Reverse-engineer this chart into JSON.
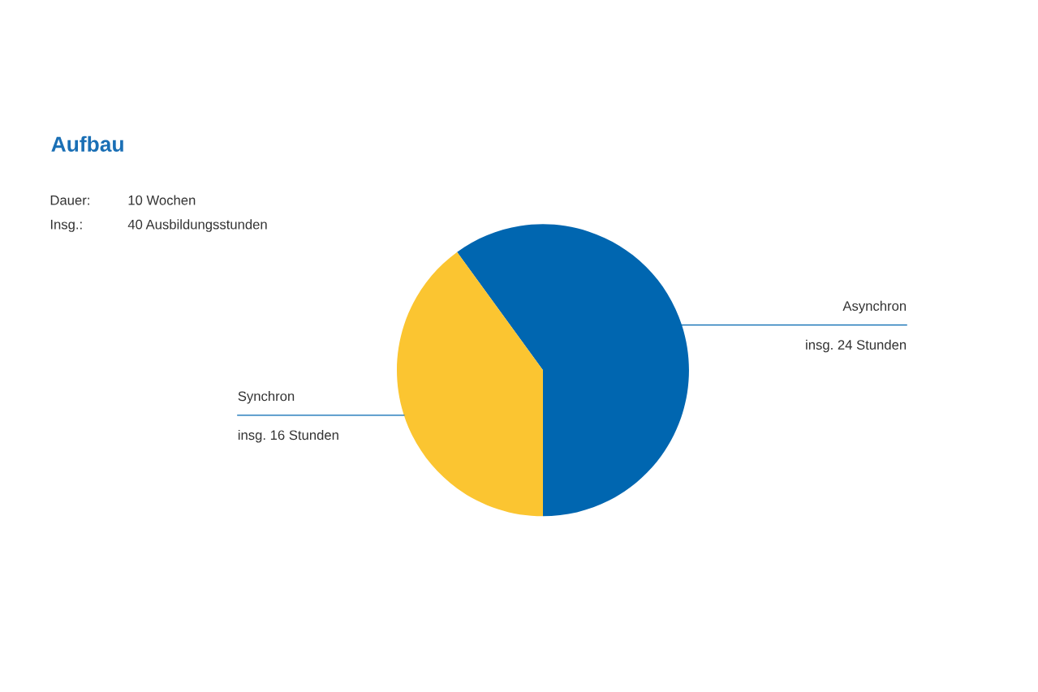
{
  "chart_data": {
    "type": "pie",
    "title": "Aufbau",
    "annotations": [
      "Dauer:",
      "10 Wochen",
      "Insg.:",
      "40 Ausbildungsstunden"
    ],
    "categories": [
      "Asynchron",
      "Synchron"
    ],
    "values": [
      24,
      16
    ],
    "value_labels": [
      "insg. 24 Stunden",
      "insg. 16 Stunden"
    ],
    "colors": [
      "#0066b0",
      "#fbc531"
    ]
  }
}
